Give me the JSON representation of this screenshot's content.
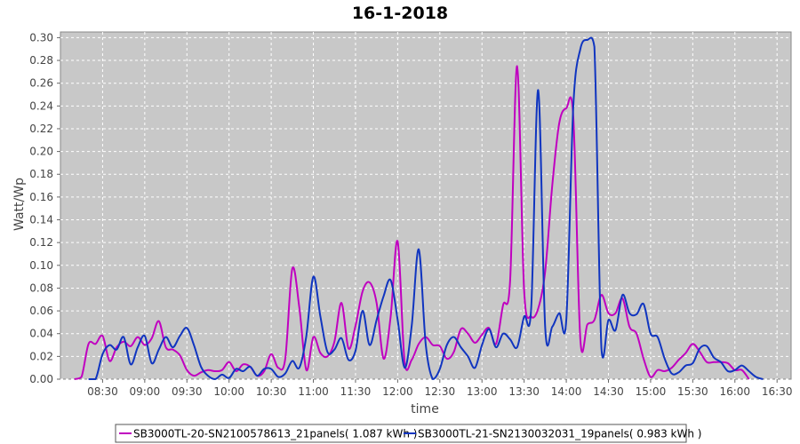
{
  "chart_data": {
    "type": "line",
    "title": "16-1-2018",
    "xlabel": "time",
    "ylabel": "Watt/Wp",
    "x_ticks": [
      "08:30",
      "09:00",
      "09:30",
      "10:00",
      "10:30",
      "11:00",
      "11:30",
      "12:00",
      "12:30",
      "13:00",
      "13:30",
      "14:00",
      "14:30",
      "15:00",
      "15:30",
      "16:00",
      "16:30"
    ],
    "y_ticks": [
      "0.00",
      "0.02",
      "0.04",
      "0.06",
      "0.08",
      "0.10",
      "0.12",
      "0.14",
      "0.16",
      "0.18",
      "0.20",
      "0.22",
      "0.24",
      "0.26",
      "0.28",
      "0.30"
    ],
    "xlim": [
      "08:00",
      "16:40"
    ],
    "ylim": [
      0,
      0.305
    ],
    "grid": true,
    "legend_position": "bottom",
    "background": "#c8c8c8",
    "series": [
      {
        "name": "SB3000TL-20-SN2100578613_21panels( 1.087 kWh )",
        "color": "#c000c0",
        "points": [
          [
            "08:10",
            0.0
          ],
          [
            "08:15",
            0.002
          ],
          [
            "08:20",
            0.031
          ],
          [
            "08:25",
            0.031
          ],
          [
            "08:30",
            0.038
          ],
          [
            "08:35",
            0.016
          ],
          [
            "08:40",
            0.028
          ],
          [
            "08:45",
            0.033
          ],
          [
            "08:50",
            0.029
          ],
          [
            "08:55",
            0.037
          ],
          [
            "09:00",
            0.03
          ],
          [
            "09:05",
            0.036
          ],
          [
            "09:10",
            0.051
          ],
          [
            "09:15",
            0.028
          ],
          [
            "09:20",
            0.026
          ],
          [
            "09:25",
            0.021
          ],
          [
            "09:30",
            0.008
          ],
          [
            "09:35",
            0.003
          ],
          [
            "09:40",
            0.006
          ],
          [
            "09:45",
            0.008
          ],
          [
            "09:50",
            0.007
          ],
          [
            "09:55",
            0.008
          ],
          [
            "10:00",
            0.015
          ],
          [
            "10:05",
            0.007
          ],
          [
            "10:10",
            0.013
          ],
          [
            "10:15",
            0.011
          ],
          [
            "10:20",
            0.003
          ],
          [
            "10:25",
            0.007
          ],
          [
            "10:30",
            0.022
          ],
          [
            "10:35",
            0.01
          ],
          [
            "10:40",
            0.018
          ],
          [
            "10:45",
            0.097
          ],
          [
            "10:50",
            0.063
          ],
          [
            "10:55",
            0.008
          ],
          [
            "11:00",
            0.037
          ],
          [
            "11:05",
            0.023
          ],
          [
            "11:10",
            0.02
          ],
          [
            "11:15",
            0.033
          ],
          [
            "11:20",
            0.067
          ],
          [
            "11:25",
            0.027
          ],
          [
            "11:30",
            0.047
          ],
          [
            "11:35",
            0.077
          ],
          [
            "11:40",
            0.085
          ],
          [
            "11:45",
            0.067
          ],
          [
            "11:50",
            0.018
          ],
          [
            "11:55",
            0.055
          ],
          [
            "12:00",
            0.121
          ],
          [
            "12:05",
            0.014
          ],
          [
            "12:10",
            0.017
          ],
          [
            "12:15",
            0.031
          ],
          [
            "12:20",
            0.037
          ],
          [
            "12:25",
            0.03
          ],
          [
            "12:30",
            0.029
          ],
          [
            "12:35",
            0.018
          ],
          [
            "12:40",
            0.024
          ],
          [
            "12:45",
            0.044
          ],
          [
            "12:50",
            0.04
          ],
          [
            "12:55",
            0.032
          ],
          [
            "13:00",
            0.039
          ],
          [
            "13:05",
            0.045
          ],
          [
            "13:10",
            0.031
          ],
          [
            "13:15",
            0.065
          ],
          [
            "13:20",
            0.086
          ],
          [
            "13:25",
            0.275
          ],
          [
            "13:30",
            0.078
          ],
          [
            "13:35",
            0.055
          ],
          [
            "13:40",
            0.062
          ],
          [
            "13:45",
            0.095
          ],
          [
            "13:50",
            0.17
          ],
          [
            "13:55",
            0.225
          ],
          [
            "14:00",
            0.238
          ],
          [
            "14:05",
            0.23
          ],
          [
            "14:10",
            0.035
          ],
          [
            "14:15",
            0.048
          ],
          [
            "14:20",
            0.052
          ],
          [
            "14:25",
            0.074
          ],
          [
            "14:30",
            0.058
          ],
          [
            "14:35",
            0.058
          ],
          [
            "14:40",
            0.071
          ],
          [
            "14:45",
            0.046
          ],
          [
            "14:50",
            0.04
          ],
          [
            "14:55",
            0.018
          ],
          [
            "15:00",
            0.002
          ],
          [
            "15:05",
            0.008
          ],
          [
            "15:10",
            0.007
          ],
          [
            "15:15",
            0.01
          ],
          [
            "15:20",
            0.017
          ],
          [
            "15:25",
            0.023
          ],
          [
            "15:30",
            0.031
          ],
          [
            "15:35",
            0.024
          ],
          [
            "15:40",
            0.015
          ],
          [
            "15:45",
            0.015
          ],
          [
            "15:50",
            0.015
          ],
          [
            "15:55",
            0.014
          ],
          [
            "16:00",
            0.008
          ],
          [
            "16:05",
            0.008
          ],
          [
            "16:10",
            0.0
          ]
        ]
      },
      {
        "name": "SB3000TL-21-SN2130032031_19panels( 0.983 kWh )",
        "color": "#1035c0",
        "points": [
          [
            "08:20",
            0.0
          ],
          [
            "08:25",
            0.0
          ],
          [
            "08:30",
            0.022
          ],
          [
            "08:35",
            0.03
          ],
          [
            "08:40",
            0.026
          ],
          [
            "08:45",
            0.037
          ],
          [
            "08:50",
            0.013
          ],
          [
            "08:55",
            0.028
          ],
          [
            "09:00",
            0.038
          ],
          [
            "09:05",
            0.014
          ],
          [
            "09:10",
            0.026
          ],
          [
            "09:15",
            0.037
          ],
          [
            "09:20",
            0.028
          ],
          [
            "09:25",
            0.038
          ],
          [
            "09:30",
            0.045
          ],
          [
            "09:35",
            0.03
          ],
          [
            "09:40",
            0.011
          ],
          [
            "09:45",
            0.003
          ],
          [
            "09:50",
            0.0
          ],
          [
            "09:55",
            0.004
          ],
          [
            "10:00",
            0.001
          ],
          [
            "10:05",
            0.009
          ],
          [
            "10:10",
            0.007
          ],
          [
            "10:15",
            0.011
          ],
          [
            "10:20",
            0.003
          ],
          [
            "10:25",
            0.009
          ],
          [
            "10:30",
            0.009
          ],
          [
            "10:35",
            0.002
          ],
          [
            "10:40",
            0.005
          ],
          [
            "10:45",
            0.016
          ],
          [
            "10:50",
            0.01
          ],
          [
            "10:55",
            0.038
          ],
          [
            "11:00",
            0.09
          ],
          [
            "11:05",
            0.055
          ],
          [
            "11:10",
            0.024
          ],
          [
            "11:15",
            0.026
          ],
          [
            "11:20",
            0.036
          ],
          [
            "11:25",
            0.017
          ],
          [
            "11:30",
            0.025
          ],
          [
            "11:35",
            0.06
          ],
          [
            "11:40",
            0.03
          ],
          [
            "11:45",
            0.052
          ],
          [
            "11:50",
            0.073
          ],
          [
            "11:55",
            0.087
          ],
          [
            "12:00",
            0.052
          ],
          [
            "12:05",
            0.01
          ],
          [
            "12:10",
            0.047
          ],
          [
            "12:15",
            0.114
          ],
          [
            "12:20",
            0.03
          ],
          [
            "12:25",
            0.0
          ],
          [
            "12:30",
            0.009
          ],
          [
            "12:35",
            0.03
          ],
          [
            "12:40",
            0.037
          ],
          [
            "12:45",
            0.028
          ],
          [
            "12:50",
            0.02
          ],
          [
            "12:55",
            0.01
          ],
          [
            "13:00",
            0.03
          ],
          [
            "13:05",
            0.044
          ],
          [
            "13:10",
            0.028
          ],
          [
            "13:15",
            0.04
          ],
          [
            "13:20",
            0.035
          ],
          [
            "13:25",
            0.028
          ],
          [
            "13:30",
            0.055
          ],
          [
            "13:35",
            0.062
          ],
          [
            "13:40",
            0.254
          ],
          [
            "13:45",
            0.045
          ],
          [
            "13:50",
            0.046
          ],
          [
            "13:55",
            0.058
          ],
          [
            "14:00",
            0.052
          ],
          [
            "14:05",
            0.24
          ],
          [
            "14:10",
            0.29
          ],
          [
            "14:15",
            0.298
          ],
          [
            "14:20",
            0.292
          ],
          [
            "14:25",
            0.027
          ],
          [
            "14:30",
            0.052
          ],
          [
            "14:35",
            0.043
          ],
          [
            "14:40",
            0.074
          ],
          [
            "14:45",
            0.058
          ],
          [
            "14:50",
            0.057
          ],
          [
            "14:55",
            0.066
          ],
          [
            "15:00",
            0.04
          ],
          [
            "15:05",
            0.037
          ],
          [
            "15:10",
            0.018
          ],
          [
            "15:15",
            0.005
          ],
          [
            "15:20",
            0.006
          ],
          [
            "15:25",
            0.012
          ],
          [
            "15:30",
            0.014
          ],
          [
            "15:35",
            0.027
          ],
          [
            "15:40",
            0.029
          ],
          [
            "15:45",
            0.019
          ],
          [
            "15:50",
            0.015
          ],
          [
            "15:55",
            0.007
          ],
          [
            "16:00",
            0.008
          ],
          [
            "16:05",
            0.012
          ],
          [
            "16:10",
            0.007
          ],
          [
            "16:15",
            0.002
          ],
          [
            "16:20",
            0.0
          ]
        ]
      }
    ]
  }
}
